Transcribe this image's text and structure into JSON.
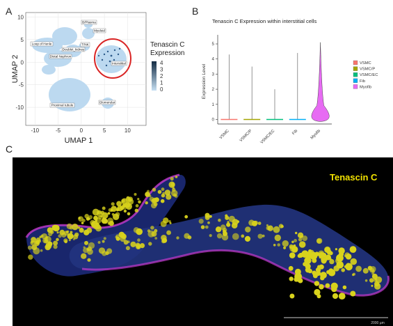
{
  "panels": {
    "a": "A",
    "b": "B",
    "c": "C"
  },
  "umap": {
    "xlabel": "UMAP 1",
    "ylabel": "UMAP 2",
    "xticks": [
      -10,
      -5,
      0,
      5,
      10
    ],
    "yticks": [
      -10,
      -5,
      0,
      5,
      10
    ],
    "legend_title_line1": "Tenascin C",
    "legend_title_line2": "Expression",
    "legend_ticks": [
      "4",
      "3",
      "2",
      "1",
      "0"
    ],
    "cluster_labels": [
      "B/Plasma",
      "Myeloid",
      "Loop of Henle",
      "T/NK",
      "Doublet_kidney",
      "Distal Nephron",
      "Interstitial",
      "Proximal tubule",
      "Glomerular"
    ],
    "highlight_color": "#d92424",
    "low_color": "#c6dff2",
    "high_color": "#132b43"
  },
  "chart_data": {
    "type": "violin",
    "title": "Tenascin C Expression within interstitial cells",
    "xlabel": "",
    "ylabel": "Expression Level",
    "categories": [
      "VSMC",
      "VSMC/P",
      "VSMC/EC",
      "Fib",
      "Myofib"
    ],
    "colors": [
      "#f8766d",
      "#a3a500",
      "#00bf7d",
      "#00b0f6",
      "#e76bf3"
    ],
    "max_values": [
      4.3,
      3.5,
      2.0,
      4.4,
      5.1
    ],
    "yticks": [
      0,
      1,
      2,
      3,
      4,
      5
    ],
    "ylim": [
      -0.3,
      5.6
    ],
    "legend_entries": [
      "VSMC",
      "VSMC/P",
      "VSMC/EC",
      "Fib",
      "Myofib"
    ],
    "legend_position": "right"
  },
  "micrograph": {
    "label": "Tenascin C",
    "label_color": "#f2e200",
    "scale_bar": "2000 µm"
  }
}
